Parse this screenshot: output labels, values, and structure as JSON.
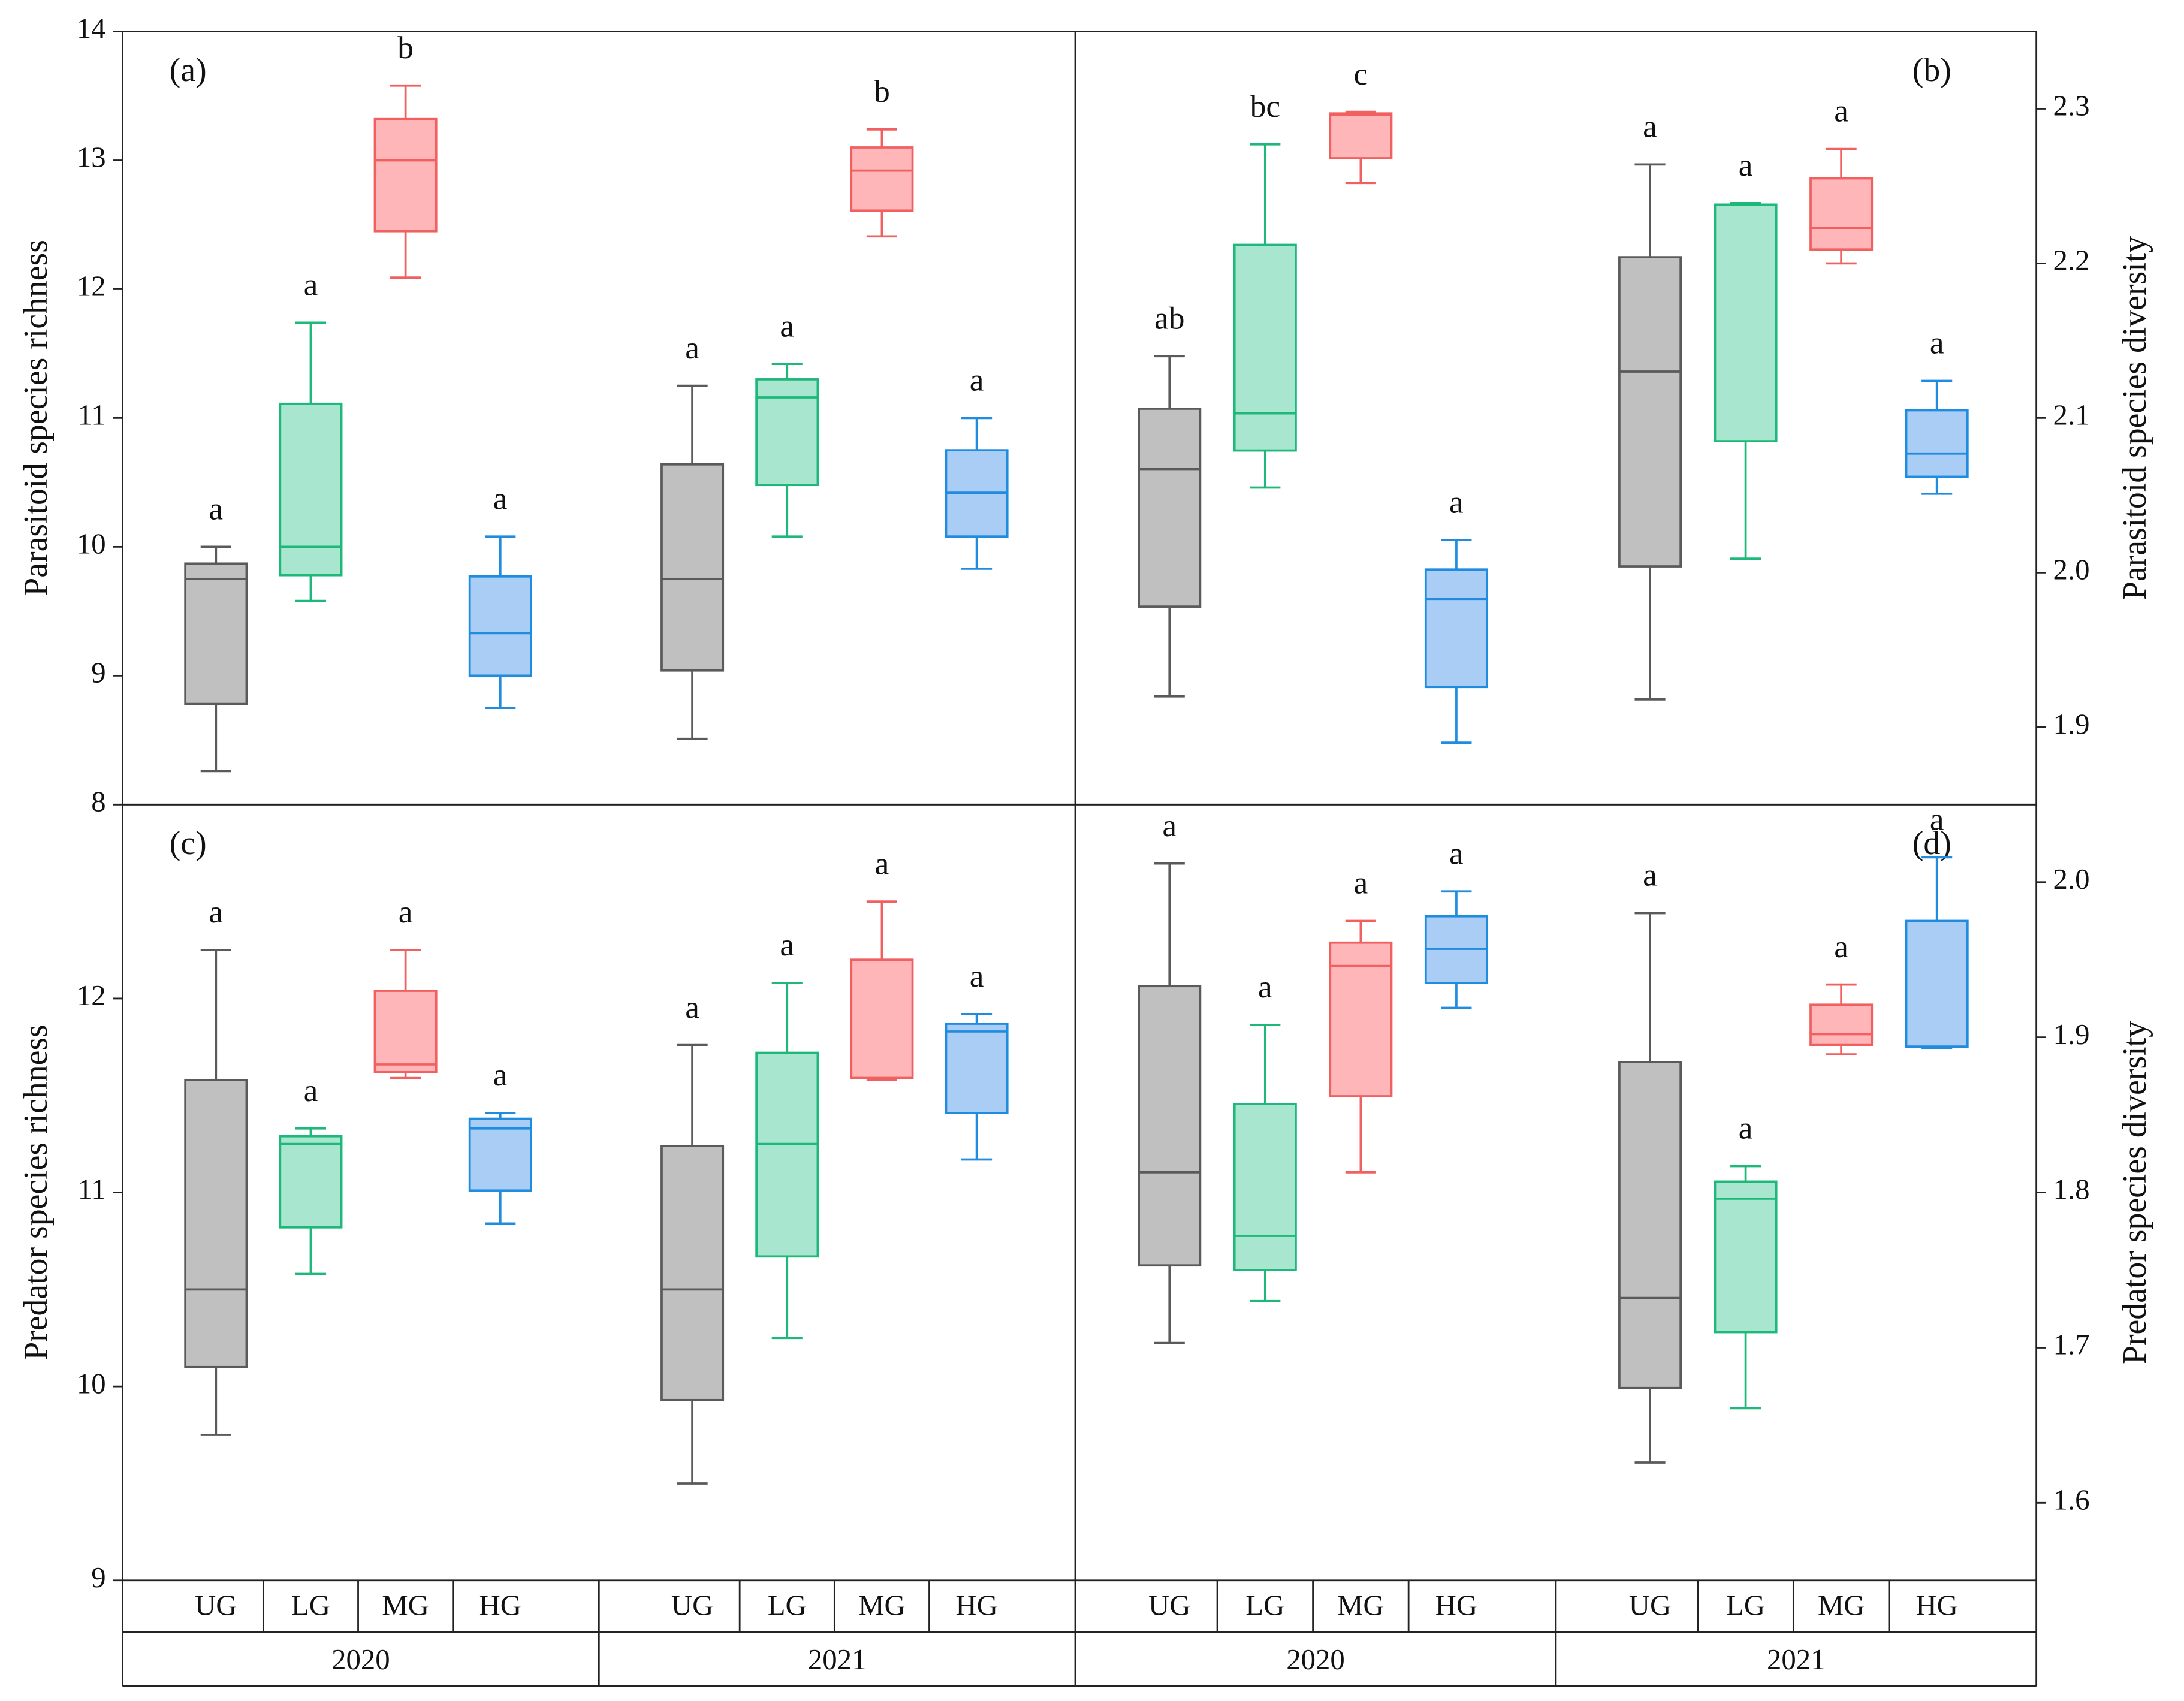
{
  "chart_data": [
    {
      "type": "box",
      "title": "(a)",
      "y_label": "Parasitoid species richness",
      "axis_side": "left",
      "ylim": [
        8,
        14
      ],
      "yticks": [
        8,
        9,
        10,
        11,
        12,
        13,
        14
      ],
      "boxes": [
        {
          "min": 8.26,
          "q1": 8.78,
          "median": 9.75,
          "q3": 9.87,
          "max": 10.0,
          "label": "a",
          "color": "#5a5a5a",
          "fill": "#c0c0c0"
        },
        {
          "min": 9.58,
          "q1": 9.78,
          "median": 10.0,
          "q3": 11.11,
          "max": 11.74,
          "label": "a",
          "color": "#1db87a",
          "fill": "#a8e6cf"
        },
        {
          "min": 12.09,
          "q1": 12.45,
          "median": 13.0,
          "q3": 13.32,
          "max": 13.58,
          "label": "b",
          "color": "#f06060",
          "fill": "#ffb6b9"
        },
        {
          "min": 8.75,
          "q1": 9.0,
          "median": 9.33,
          "q3": 9.77,
          "max": 10.08,
          "label": "a",
          "color": "#1f8ce0",
          "fill": "#a9cdf5"
        },
        {
          "min": 8.51,
          "q1": 9.04,
          "median": 9.75,
          "q3": 10.64,
          "max": 11.25,
          "label": "a",
          "color": "#5a5a5a",
          "fill": "#c0c0c0"
        },
        {
          "min": 10.08,
          "q1": 10.48,
          "median": 11.16,
          "q3": 11.3,
          "max": 11.42,
          "label": "a",
          "color": "#1db87a",
          "fill": "#a8e6cf"
        },
        {
          "min": 12.41,
          "q1": 12.61,
          "median": 12.92,
          "q3": 13.1,
          "max": 13.24,
          "label": "b",
          "color": "#f06060",
          "fill": "#ffb6b9"
        },
        {
          "min": 9.83,
          "q1": 10.08,
          "median": 10.42,
          "q3": 10.75,
          "max": 11.0,
          "label": "a",
          "color": "#1f8ce0",
          "fill": "#a9cdf5"
        }
      ]
    },
    {
      "type": "box",
      "title": "(b)",
      "y_label": "Parasitoid species diversity",
      "axis_side": "right",
      "ylim": [
        1.85,
        2.35
      ],
      "yticks": [
        1.9,
        {
          "value": 2,
          "label": "2.0"
        },
        2.1,
        2.2,
        2.3
      ],
      "boxes": [
        {
          "min": 1.92,
          "q1": 1.978,
          "median": 2.067,
          "q3": 2.106,
          "max": 2.14,
          "label": "ab",
          "color": "#5a5a5a",
          "fill": "#c0c0c0"
        },
        {
          "min": 2.055,
          "q1": 2.079,
          "median": 2.103,
          "q3": 2.212,
          "max": 2.277,
          "label": "bc",
          "color": "#1db87a",
          "fill": "#a8e6cf"
        },
        {
          "min": 2.252,
          "q1": 2.268,
          "median": 2.296,
          "q3": 2.297,
          "max": 2.298,
          "label": "c",
          "color": "#f06060",
          "fill": "#ffb6b9"
        },
        {
          "min": 1.89,
          "q1": 1.926,
          "median": 1.983,
          "q3": 2.002,
          "max": 2.021,
          "label": "a",
          "color": "#1f8ce0",
          "fill": "#a9cdf5"
        },
        {
          "min": 1.918,
          "q1": 2.004,
          "median": 2.13,
          "q3": 2.204,
          "max": 2.264,
          "label": "a",
          "color": "#5a5a5a",
          "fill": "#c0c0c0"
        },
        {
          "min": 2.009,
          "q1": 2.085,
          "median": 2.238,
          "q3": 2.238,
          "max": 2.239,
          "label": "a",
          "color": "#1db87a",
          "fill": "#a8e6cf"
        },
        {
          "min": 2.2,
          "q1": 2.209,
          "median": 2.223,
          "q3": 2.255,
          "max": 2.274,
          "label": "a",
          "color": "#f06060",
          "fill": "#ffb6b9"
        },
        {
          "min": 2.051,
          "q1": 2.062,
          "median": 2.077,
          "q3": 2.105,
          "max": 2.124,
          "label": "a",
          "color": "#1f8ce0",
          "fill": "#a9cdf5"
        }
      ]
    },
    {
      "type": "box",
      "title": "(c)",
      "y_label": "Predator species richness",
      "axis_side": "left",
      "ylim": [
        9,
        13
      ],
      "yticks": [
        9,
        10,
        11,
        12
      ],
      "categories": [
        "UG",
        "LG",
        "MG",
        "HG",
        "UG",
        "LG",
        "MG",
        "HG"
      ],
      "groups": [
        "2020",
        "2021"
      ],
      "boxes": [
        {
          "min": 9.75,
          "q1": 10.1,
          "median": 10.5,
          "q3": 11.58,
          "max": 12.25,
          "label": "a",
          "color": "#5a5a5a",
          "fill": "#c0c0c0"
        },
        {
          "min": 10.58,
          "q1": 10.82,
          "median": 11.25,
          "q3": 11.29,
          "max": 11.33,
          "label": "a",
          "color": "#1db87a",
          "fill": "#a8e6cf"
        },
        {
          "min": 11.59,
          "q1": 11.62,
          "median": 11.66,
          "q3": 12.04,
          "max": 12.25,
          "label": "a",
          "color": "#f06060",
          "fill": "#ffb6b9"
        },
        {
          "min": 10.84,
          "q1": 11.01,
          "median": 11.33,
          "q3": 11.38,
          "max": 11.41,
          "label": "a",
          "color": "#1f8ce0",
          "fill": "#a9cdf5"
        },
        {
          "min": 9.5,
          "q1": 9.93,
          "median": 10.5,
          "q3": 11.24,
          "max": 11.76,
          "label": "a",
          "color": "#5a5a5a",
          "fill": "#c0c0c0"
        },
        {
          "min": 10.25,
          "q1": 10.67,
          "median": 11.25,
          "q3": 11.72,
          "max": 12.08,
          "label": "a",
          "color": "#1db87a",
          "fill": "#a8e6cf"
        },
        {
          "min": 11.58,
          "q1": 11.59,
          "median": 11.59,
          "q3": 12.2,
          "max": 12.5,
          "label": "a",
          "color": "#f06060",
          "fill": "#ffb6b9"
        },
        {
          "min": 11.17,
          "q1": 11.41,
          "median": 11.83,
          "q3": 11.87,
          "max": 11.92,
          "label": "a",
          "color": "#1f8ce0",
          "fill": "#a9cdf5"
        }
      ]
    },
    {
      "type": "box",
      "title": "(d)",
      "y_label": "Predator species diversity",
      "axis_side": "right",
      "ylim": [
        1.55,
        2.05
      ],
      "yticks": [
        1.6,
        1.7,
        1.8,
        1.9,
        {
          "value": 2,
          "label": "2.0"
        }
      ],
      "categories": [
        "UG",
        "LG",
        "MG",
        "HG",
        "UG",
        "LG",
        "MG",
        "HG"
      ],
      "groups": [
        "2020",
        "2021"
      ],
      "boxes": [
        {
          "min": 1.703,
          "q1": 1.753,
          "median": 1.813,
          "q3": 1.933,
          "max": 2.012,
          "label": "a",
          "color": "#5a5a5a",
          "fill": "#c0c0c0"
        },
        {
          "min": 1.73,
          "q1": 1.75,
          "median": 1.772,
          "q3": 1.857,
          "max": 1.908,
          "label": "a",
          "color": "#1db87a",
          "fill": "#a8e6cf"
        },
        {
          "min": 1.813,
          "q1": 1.862,
          "median": 1.946,
          "q3": 1.961,
          "max": 1.975,
          "label": "a",
          "color": "#f06060",
          "fill": "#ffb6b9"
        },
        {
          "min": 1.919,
          "q1": 1.935,
          "median": 1.957,
          "q3": 1.978,
          "max": 1.994,
          "label": "a",
          "color": "#1f8ce0",
          "fill": "#a9cdf5"
        },
        {
          "min": 1.626,
          "q1": 1.674,
          "median": 1.732,
          "q3": 1.884,
          "max": 1.98,
          "label": "a",
          "color": "#5a5a5a",
          "fill": "#c0c0c0"
        },
        {
          "min": 1.661,
          "q1": 1.71,
          "median": 1.796,
          "q3": 1.807,
          "max": 1.817,
          "label": "a",
          "color": "#1db87a",
          "fill": "#a8e6cf"
        },
        {
          "min": 1.889,
          "q1": 1.895,
          "median": 1.902,
          "q3": 1.921,
          "max": 1.934,
          "label": "a",
          "color": "#f06060",
          "fill": "#ffb6b9"
        },
        {
          "min": 1.893,
          "q1": 1.894,
          "median": 1.894,
          "q3": 1.975,
          "max": 2.016,
          "label": "a",
          "color": "#1f8ce0",
          "fill": "#a9cdf5"
        }
      ]
    }
  ]
}
